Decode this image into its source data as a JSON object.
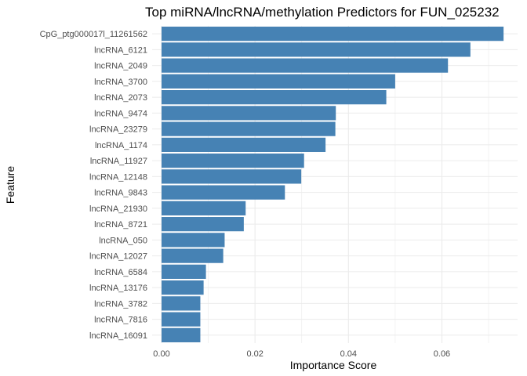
{
  "chart_data": {
    "type": "bar",
    "orientation": "horizontal",
    "title": "Top miRNA/lncRNA/methylation Predictors for FUN_025232",
    "xlabel": "Importance Score",
    "ylabel": "Feature",
    "xlim": [
      0.0,
      0.0735
    ],
    "x_ticks": [
      "0.00",
      "0.02",
      "0.04",
      "0.06"
    ],
    "x_tick_values": [
      0.0,
      0.02,
      0.04,
      0.06
    ],
    "grid": true,
    "bar_color": "#4682B4",
    "grid_color": "#EBEBEB",
    "categories": [
      "CpG_ptg000017l_11261562",
      "lncRNA_6121",
      "lncRNA_2049",
      "lncRNA_3700",
      "lncRNA_2073",
      "lncRNA_9474",
      "lncRNA_23279",
      "lncRNA_1174",
      "lncRNA_11927",
      "lncRNA_12148",
      "lncRNA_9843",
      "lncRNA_21930",
      "lncRNA_8721",
      "lncRNA_050",
      "lncRNA_12027",
      "lncRNA_6584",
      "lncRNA_13176",
      "lncRNA_3782",
      "lncRNA_7816",
      "lncRNA_16091"
    ],
    "values": [
      0.0732,
      0.0661,
      0.0613,
      0.05,
      0.0481,
      0.0373,
      0.0372,
      0.0351,
      0.0305,
      0.0299,
      0.0264,
      0.018,
      0.0176,
      0.0135,
      0.0132,
      0.0095,
      0.009,
      0.0083,
      0.0083,
      0.0083
    ]
  }
}
